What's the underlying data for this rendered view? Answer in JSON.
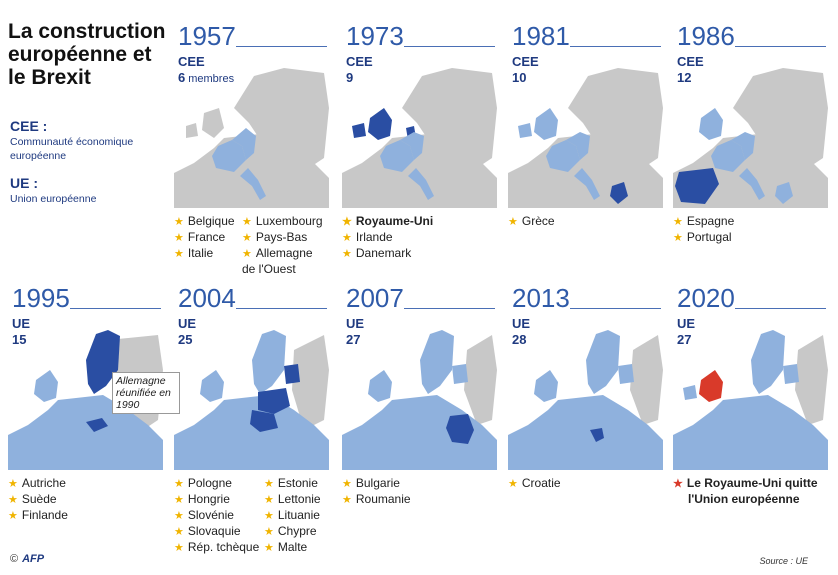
{
  "title": "La construction européenne et le Brexit",
  "legend": [
    {
      "abbr": "CEE :",
      "desc": "Communauté économique européenne"
    },
    {
      "abbr": "UE :",
      "desc": "Union européenne"
    }
  ],
  "colors": {
    "accent": "#2f5aa8",
    "member_old": "#8fb1dd",
    "member_new": "#2a4ea3",
    "non_member": "#c8c8c8",
    "brexit": "#d93a2a",
    "star": "#f0b400"
  },
  "panels": [
    {
      "year": "1957",
      "org": "CEE",
      "count": "6",
      "count_suffix": "membres",
      "new_highlight": "CEE founders",
      "countries": [
        [
          "Belgique",
          "France",
          "Italie"
        ],
        [
          "Luxembourg",
          "Pays-Bas",
          "Allemagne de l'Ouest"
        ]
      ]
    },
    {
      "year": "1973",
      "org": "CEE",
      "count": "9",
      "count_suffix": "",
      "countries": [
        [
          "Royaume-Uni",
          "Irlande",
          "Danemark"
        ]
      ]
    },
    {
      "year": "1981",
      "org": "CEE",
      "count": "10",
      "count_suffix": "",
      "countries": [
        [
          "Grèce"
        ]
      ]
    },
    {
      "year": "1986",
      "org": "CEE",
      "count": "12",
      "count_suffix": "",
      "countries": [
        [
          "Espagne",
          "Portugal"
        ]
      ]
    },
    {
      "year": "1995",
      "org": "UE",
      "count": "15",
      "count_suffix": "",
      "countries": [
        [
          "Autriche",
          "Suède",
          "Finlande"
        ]
      ],
      "callout": "Allemagne réunifiée en 1990"
    },
    {
      "year": "2004",
      "org": "UE",
      "count": "25",
      "count_suffix": "",
      "countries": [
        [
          "Pologne",
          "Hongrie",
          "Slovénie",
          "Slovaquie",
          "Rép. tchèque"
        ],
        [
          "Estonie",
          "Lettonie",
          "Lituanie",
          "Chypre",
          "Malte"
        ]
      ]
    },
    {
      "year": "2007",
      "org": "UE",
      "count": "27",
      "count_suffix": "",
      "countries": [
        [
          "Bulgarie",
          "Roumanie"
        ]
      ]
    },
    {
      "year": "2013",
      "org": "UE",
      "count": "28",
      "count_suffix": "",
      "countries": [
        [
          "Croatie"
        ]
      ]
    },
    {
      "year": "2020",
      "org": "UE",
      "count": "27",
      "count_suffix": "",
      "countries": [
        [
          "Le Royaume-Uni quitte l'Union européenne"
        ]
      ]
    }
  ],
  "footer": {
    "copyright": "©",
    "agency": "AFP",
    "source": "Source : UE"
  }
}
